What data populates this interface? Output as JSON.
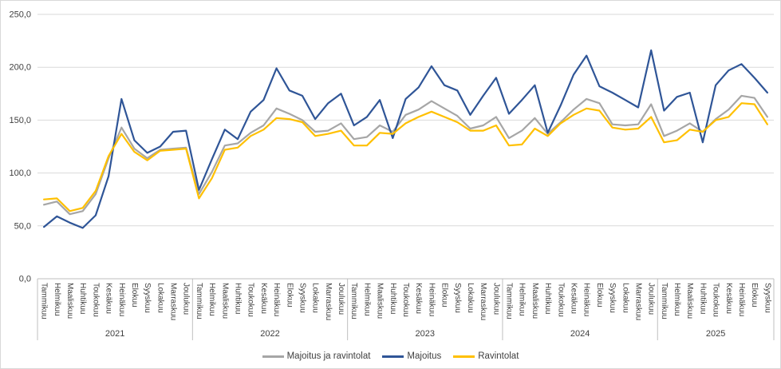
{
  "chart_data": {
    "type": "line",
    "title": "",
    "xlabel": "",
    "ylabel": "",
    "ylim": [
      0,
      250
    ],
    "y_tick_step": 50,
    "y_ticks": [
      "0,0",
      "50,0",
      "100,0",
      "150,0",
      "200,0",
      "250,0"
    ],
    "grid": true,
    "legend_position": "bottom",
    "year_groups": [
      {
        "label": "2021",
        "count": 12
      },
      {
        "label": "2022",
        "count": 12
      },
      {
        "label": "2023",
        "count": 12
      },
      {
        "label": "2024",
        "count": 12
      },
      {
        "label": "2025",
        "count": 9
      }
    ],
    "categories": [
      "Tammikuu",
      "Helmikuu",
      "Maaliskuu",
      "Huhtikuu",
      "Toukokuu",
      "Kesäkuu",
      "Heinäkuu",
      "Elokuu",
      "Syyskuu",
      "Lokakuu",
      "Marraskuu",
      "Joulukuu",
      "Tammikuu",
      "Helmikuu",
      "Maaliskuu",
      "Huhtikuu",
      "Toukokuu",
      "Kesäkuu",
      "Heinäkuu",
      "Elokuu",
      "Syyskuu",
      "Lokakuu",
      "Marraskuu",
      "Joulukuu",
      "Tammikuu",
      "Helmikuu",
      "Maaliskuu",
      "Huhtikuu",
      "Toukokuu",
      "Kesäkuu",
      "Heinäkuu",
      "Elokuu",
      "Syyskuu",
      "Lokakuu",
      "Marraskuu",
      "Joulukuu",
      "Tammikuu",
      "Helmikuu",
      "Maaliskuu",
      "Huhtikuu",
      "Toukokuu",
      "Kesäkuu",
      "Heinäkuu",
      "Elokuu",
      "Syyskuu",
      "Lokakuu",
      "Marraskuu",
      "Joulukuu",
      "Tammikuu",
      "Helmikuu",
      "Maaliskuu",
      "Huhtikuu",
      "Toukokuu",
      "Kesäkuu",
      "Heinäkuu",
      "Elokuu",
      "Syyskuu"
    ],
    "series": [
      {
        "name": "Majoitus ja ravintolat",
        "color": "#A6A6A6",
        "values": [
          70,
          73,
          61,
          64,
          80,
          114,
          143,
          123,
          114,
          122,
          123,
          124,
          80,
          101,
          126,
          128,
          138,
          145,
          161,
          156,
          150,
          139,
          140,
          147,
          132,
          134,
          145,
          139,
          155,
          160,
          168,
          161,
          154,
          142,
          145,
          153,
          133,
          140,
          152,
          137,
          148,
          160,
          170,
          166,
          146,
          145,
          146,
          165,
          135,
          140,
          147,
          139,
          151,
          160,
          173,
          171,
          153
        ]
      },
      {
        "name": "Majoitus",
        "color": "#2F5597",
        "values": [
          49,
          59,
          53,
          48,
          60,
          97,
          170,
          131,
          119,
          125,
          139,
          140,
          84,
          113,
          141,
          132,
          158,
          169,
          199,
          178,
          173,
          151,
          166,
          175,
          145,
          153,
          169,
          133,
          170,
          181,
          201,
          183,
          178,
          155,
          173,
          190,
          156,
          169,
          183,
          138,
          164,
          193,
          211,
          182,
          176,
          169,
          162,
          216,
          159,
          172,
          176,
          129,
          183,
          197,
          203,
          190,
          176
        ]
      },
      {
        "name": "Ravintolat",
        "color": "#FFC000",
        "values": [
          75,
          76,
          64,
          67,
          83,
          116,
          137,
          120,
          112,
          121,
          122,
          123,
          76,
          95,
          122,
          124,
          135,
          141,
          152,
          151,
          148,
          135,
          137,
          140,
          126,
          126,
          138,
          137,
          147,
          153,
          158,
          153,
          148,
          140,
          140,
          145,
          126,
          127,
          142,
          135,
          147,
          155,
          161,
          159,
          143,
          141,
          142,
          153,
          129,
          131,
          141,
          139,
          150,
          153,
          166,
          165,
          146
        ]
      }
    ],
    "style": {
      "gridline_color": "#D9D9D9",
      "axis_color": "#BFBFBF",
      "text_color": "#404040",
      "background": "#FFFFFF"
    }
  }
}
